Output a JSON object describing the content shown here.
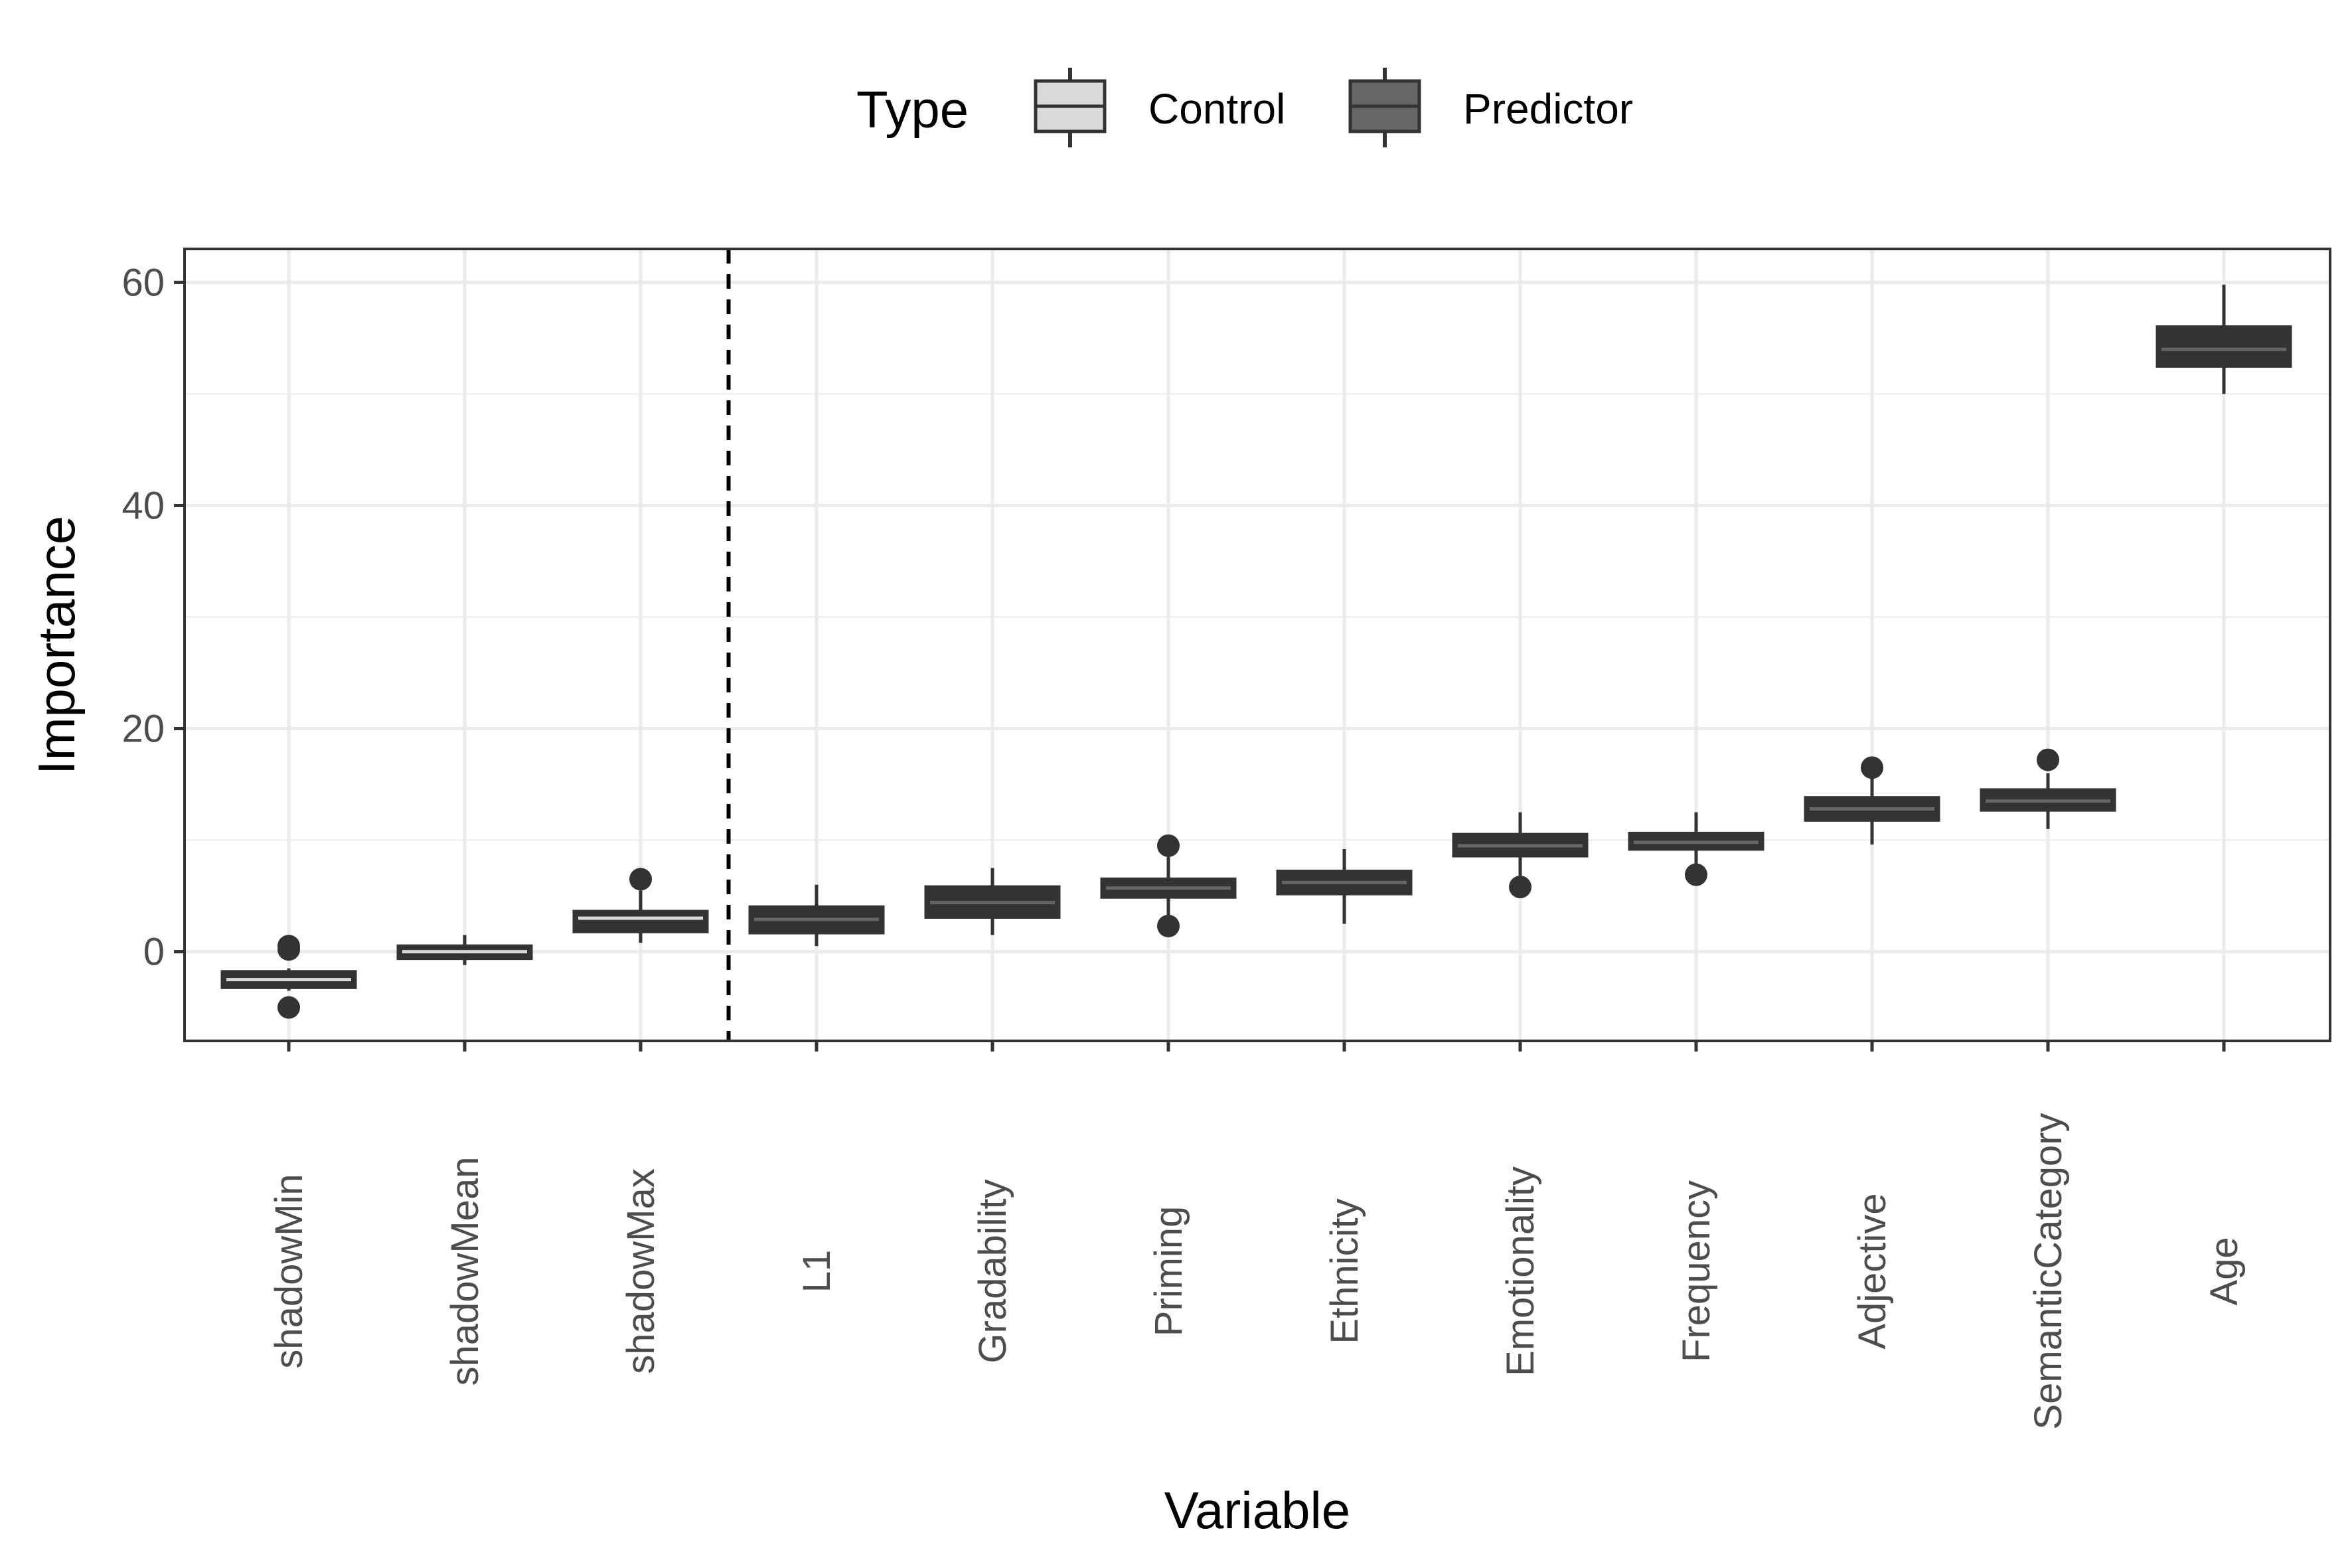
{
  "chart_data": {
    "type": "boxplot",
    "xlabel": "Variable",
    "ylabel": "Importance",
    "ylim": [
      -8,
      63
    ],
    "yticks": [
      0,
      20,
      40,
      60
    ],
    "grid": true,
    "legend": {
      "title": "Type",
      "position": "top",
      "entries": [
        {
          "label": "Control",
          "color": "#d9d9d9"
        },
        {
          "label": "Predictor",
          "color": "#666666"
        }
      ]
    },
    "divider_after_index": 2,
    "boxes": [
      {
        "category": "shadowMin",
        "type": "Control",
        "min": -3.5,
        "q1": -3.2,
        "median": -2.5,
        "q3": -1.8,
        "max": -1.5,
        "outliers": [
          0.5,
          0.2,
          -5.0
        ]
      },
      {
        "category": "shadowMean",
        "type": "Control",
        "min": -1.2,
        "q1": -0.6,
        "median": 0.0,
        "q3": 0.5,
        "max": 1.5,
        "outliers": []
      },
      {
        "category": "shadowMax",
        "type": "Control",
        "min": 0.8,
        "q1": 1.8,
        "median": 3.0,
        "q3": 3.6,
        "max": 5.5,
        "outliers": [
          6.5
        ]
      },
      {
        "category": "L1",
        "type": "Predictor",
        "min": 0.5,
        "q1": 1.7,
        "median": 2.9,
        "q3": 4.0,
        "max": 6.0,
        "outliers": []
      },
      {
        "category": "Gradability",
        "type": "Predictor",
        "min": 1.5,
        "q1": 3.1,
        "median": 4.4,
        "q3": 5.8,
        "max": 7.5,
        "outliers": []
      },
      {
        "category": "Priming",
        "type": "Predictor",
        "min": 3.2,
        "q1": 4.9,
        "median": 5.7,
        "q3": 6.5,
        "max": 8.5,
        "outliers": [
          9.5,
          2.3
        ]
      },
      {
        "category": "Ethnicity",
        "type": "Predictor",
        "min": 2.5,
        "q1": 5.2,
        "median": 6.2,
        "q3": 7.2,
        "max": 9.2,
        "outliers": []
      },
      {
        "category": "Emotionality",
        "type": "Predictor",
        "min": 6.8,
        "q1": 8.6,
        "median": 9.5,
        "q3": 10.5,
        "max": 12.5,
        "outliers": [
          5.8
        ]
      },
      {
        "category": "Frequency",
        "type": "Predictor",
        "min": 7.8,
        "q1": 9.2,
        "median": 9.8,
        "q3": 10.6,
        "max": 12.5,
        "outliers": [
          6.9
        ]
      },
      {
        "category": "Adjective",
        "type": "Predictor",
        "min": 9.6,
        "q1": 11.8,
        "median": 12.8,
        "q3": 13.8,
        "max": 15.5,
        "outliers": [
          16.5
        ]
      },
      {
        "category": "SemanticCategory",
        "type": "Predictor",
        "min": 11.0,
        "q1": 12.7,
        "median": 13.5,
        "q3": 14.5,
        "max": 16.0,
        "outliers": [
          17.2
        ]
      },
      {
        "category": "Age",
        "type": "Predictor",
        "min": 50.0,
        "q1": 52.5,
        "median": 54.0,
        "q3": 56.0,
        "max": 59.8,
        "outliers": []
      }
    ]
  }
}
